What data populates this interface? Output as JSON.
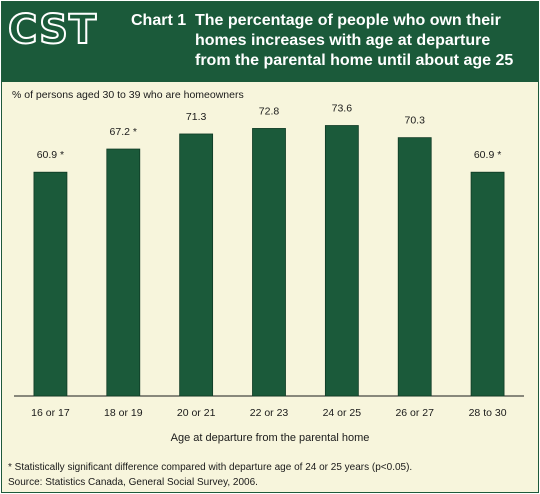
{
  "header": {
    "logo": "CST",
    "chart_label": "Chart 1",
    "title": "The percentage of people who own their homes increases with age at departure from the parental home until about age 25"
  },
  "colors": {
    "header_bg": "#1b5a3a",
    "bar": "#1b5a3a",
    "background": "#f7f5dc"
  },
  "chart_data": {
    "type": "bar",
    "ylabel": "% of persons aged 30 to 39 who are homeowners",
    "xlabel": "Age at departure from the parental home",
    "categories": [
      "16 or 17",
      "18 or 19",
      "20 or 21",
      "22 or 23",
      "24 or 25",
      "26 or 27",
      "28 to 30"
    ],
    "values": [
      60.9,
      67.2,
      71.3,
      72.8,
      73.6,
      70.3,
      60.9
    ],
    "value_labels": [
      "60.9 *",
      "67.2 *",
      "71.3",
      "72.8",
      "73.6",
      "70.3",
      "60.9 *"
    ],
    "ylim": [
      0,
      80
    ],
    "grid": false,
    "legend": "none"
  },
  "notes": {
    "footnote": "* Statistically significant difference compared with departure age of 24 or 25 years (p<0.05).",
    "source": "Source: Statistics Canada, General Social Survey, 2006."
  }
}
